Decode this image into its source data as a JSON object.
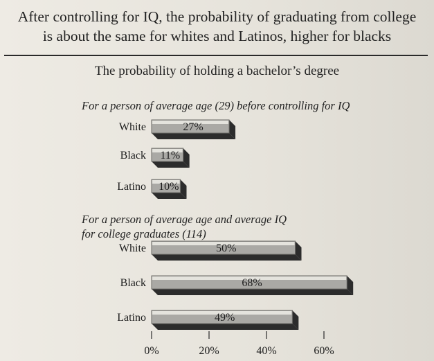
{
  "chart_data": {
    "type": "bar",
    "orientation": "horizontal",
    "title": "After controlling for IQ, the probability of graduating from college is about the same for whites and Latinos, higher for blacks",
    "title_lines": [
      "After controlling for IQ, the probability of graduating from college",
      "is about the same for whites and Latinos, higher for blacks"
    ],
    "subtitle": "The probability of holding a bachelor’s degree",
    "panels": [
      {
        "heading_lines": [
          "For a person of average age (29) before controlling for IQ"
        ],
        "categories": [
          "White",
          "Black",
          "Latino"
        ],
        "values": [
          27,
          11,
          10
        ],
        "value_labels": [
          "27%",
          "11%",
          "10%"
        ]
      },
      {
        "heading_lines": [
          "For a person of average age and average IQ",
          "for college graduates (114)"
        ],
        "categories": [
          "White",
          "Black",
          "Latino"
        ],
        "values": [
          50,
          68,
          49
        ],
        "value_labels": [
          "50%",
          "68%",
          "49%"
        ]
      }
    ],
    "x_ticks": [
      0,
      20,
      40,
      60
    ],
    "x_tick_labels": [
      "0%",
      "20%",
      "40%",
      "60%"
    ],
    "xlim": [
      0,
      70
    ],
    "colors": {
      "bar_face": "#aaa9a5",
      "bar_top": "#e4e3dd",
      "bar_side": "#2c2c2c",
      "axis_text": "#1c1c1c"
    }
  }
}
